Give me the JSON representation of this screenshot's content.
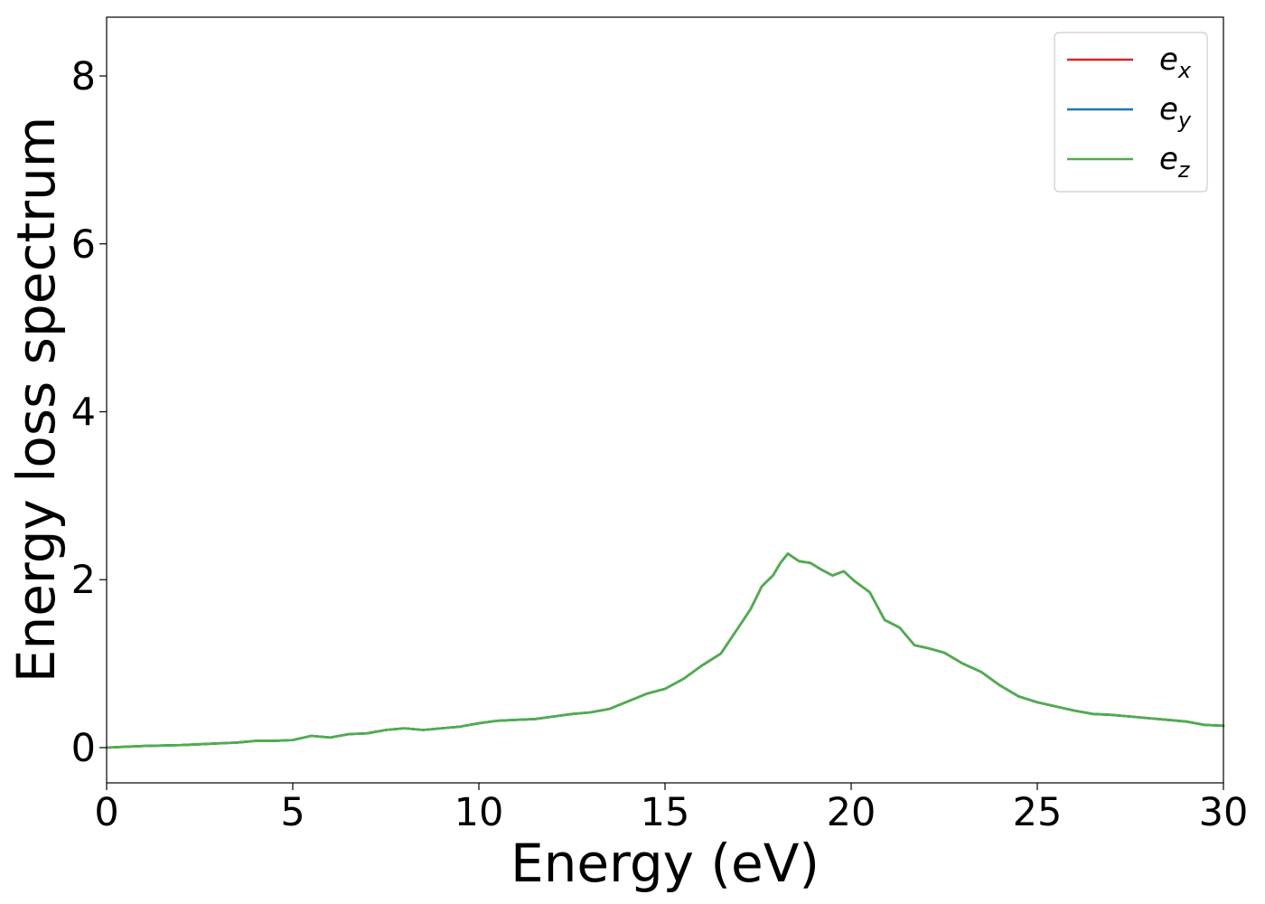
{
  "chart_data": {
    "type": "line",
    "title": "",
    "xlabel": "Energy (eV)",
    "ylabel": "Energy loss spectrum",
    "xlim": [
      0,
      30
    ],
    "ylim": [
      -0.42,
      8.7
    ],
    "xticks": [
      0,
      5,
      10,
      15,
      20,
      25,
      30
    ],
    "yticks": [
      0,
      2,
      4,
      6,
      8
    ],
    "grid": false,
    "legend_position": "top-right",
    "x": [
      0,
      0.5,
      1,
      1.5,
      2,
      2.5,
      3,
      3.5,
      4,
      4.5,
      5,
      5.5,
      6,
      6.5,
      7,
      7.5,
      8,
      8.5,
      9,
      9.5,
      10,
      10.5,
      11,
      11.5,
      12,
      12.5,
      13,
      13.5,
      14,
      14.5,
      15,
      15.5,
      16,
      16.5,
      17,
      17.3,
      17.6,
      17.9,
      18.1,
      18.3,
      18.6,
      18.9,
      19.2,
      19.5,
      19.8,
      20.1,
      20.5,
      20.9,
      21.3,
      21.7,
      22.1,
      22.5,
      23,
      23.5,
      24,
      24.5,
      25,
      25.5,
      26,
      26.5,
      27,
      27.5,
      28,
      28.5,
      29,
      29.5,
      30
    ],
    "series": [
      {
        "name": "e_x",
        "legend_base": "e",
        "legend_sub": "x",
        "color": "#d62728",
        "values": [
          0.0,
          0.01,
          0.02,
          0.025,
          0.03,
          0.04,
          0.05,
          0.06,
          0.08,
          0.08,
          0.09,
          0.14,
          0.12,
          0.16,
          0.17,
          0.21,
          0.23,
          0.21,
          0.23,
          0.25,
          0.29,
          0.32,
          0.33,
          0.34,
          0.37,
          0.4,
          0.42,
          0.46,
          0.55,
          0.64,
          0.7,
          0.82,
          0.98,
          1.12,
          1.45,
          1.65,
          1.92,
          2.05,
          2.2,
          2.31,
          2.22,
          2.2,
          2.12,
          2.05,
          2.1,
          1.98,
          1.85,
          1.52,
          1.43,
          1.22,
          1.18,
          1.13,
          1.0,
          0.9,
          0.74,
          0.61,
          0.54,
          0.49,
          0.44,
          0.4,
          0.39,
          0.37,
          0.35,
          0.33,
          0.31,
          0.27,
          0.26
        ]
      },
      {
        "name": "e_y",
        "legend_base": "e",
        "legend_sub": "y",
        "color": "#1f77b4",
        "values": [
          0.0,
          0.01,
          0.02,
          0.025,
          0.03,
          0.04,
          0.05,
          0.06,
          0.08,
          0.08,
          0.09,
          0.14,
          0.12,
          0.16,
          0.17,
          0.21,
          0.23,
          0.21,
          0.23,
          0.25,
          0.29,
          0.32,
          0.33,
          0.34,
          0.37,
          0.4,
          0.42,
          0.46,
          0.55,
          0.64,
          0.7,
          0.82,
          0.98,
          1.12,
          1.45,
          1.65,
          1.92,
          2.05,
          2.2,
          2.31,
          2.22,
          2.2,
          2.12,
          2.05,
          2.1,
          1.98,
          1.85,
          1.52,
          1.43,
          1.22,
          1.18,
          1.13,
          1.0,
          0.9,
          0.74,
          0.61,
          0.54,
          0.49,
          0.44,
          0.4,
          0.39,
          0.37,
          0.35,
          0.33,
          0.31,
          0.27,
          0.26
        ]
      },
      {
        "name": "e_z",
        "legend_base": "e",
        "legend_sub": "z",
        "color": "#4daf4a",
        "values": [
          0.0,
          0.01,
          0.02,
          0.025,
          0.03,
          0.04,
          0.05,
          0.06,
          0.08,
          0.08,
          0.09,
          0.14,
          0.12,
          0.16,
          0.17,
          0.21,
          0.23,
          0.21,
          0.23,
          0.25,
          0.29,
          0.32,
          0.33,
          0.34,
          0.37,
          0.4,
          0.42,
          0.46,
          0.55,
          0.64,
          0.7,
          0.82,
          0.98,
          1.12,
          1.45,
          1.65,
          1.92,
          2.05,
          2.2,
          2.31,
          2.22,
          2.2,
          2.12,
          2.05,
          2.1,
          1.98,
          1.85,
          1.52,
          1.43,
          1.22,
          1.18,
          1.13,
          1.0,
          0.9,
          0.74,
          0.61,
          0.54,
          0.49,
          0.44,
          0.4,
          0.39,
          0.37,
          0.35,
          0.33,
          0.31,
          0.27,
          0.26
        ]
      }
    ]
  }
}
